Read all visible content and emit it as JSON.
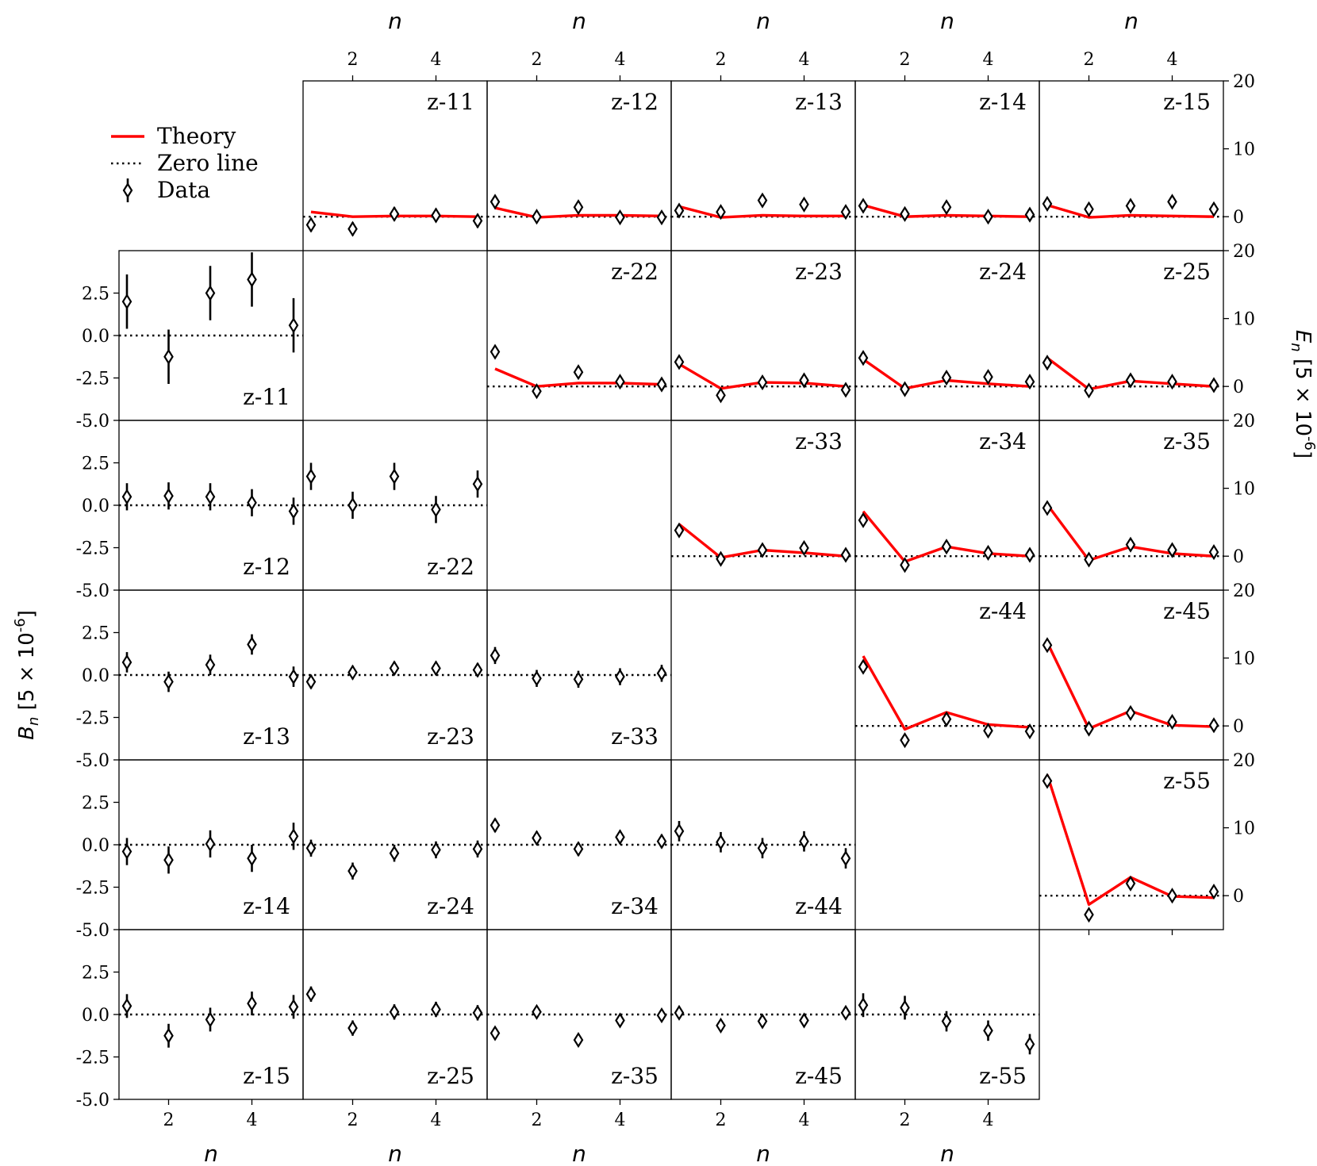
{
  "chart_data": {
    "type": "scatter",
    "x_label": "n",
    "x_ticks": [
      "2",
      "4"
    ],
    "lower_triangle": {
      "y_label": "B_n [5 × 10^-6]",
      "y_ticks": [
        "2.5",
        "0.0",
        "-2.5",
        "-5.0"
      ],
      "ylim": [
        -5.0,
        5.0
      ],
      "panels": [
        {
          "label": "z-11",
          "values": [
            2.0,
            -1.25,
            2.5,
            3.3,
            0.6
          ],
          "errors": [
            1.6,
            1.6,
            1.6,
            1.6,
            1.6
          ]
        },
        {
          "label": "z-12",
          "values": [
            0.5,
            0.55,
            0.5,
            0.15,
            -0.35
          ],
          "errors": [
            0.8,
            0.8,
            0.8,
            0.8,
            0.8
          ]
        },
        {
          "label": "z-22",
          "values": [
            1.7,
            0.0,
            1.7,
            -0.25,
            1.25
          ],
          "errors": [
            0.8,
            0.8,
            0.8,
            0.8,
            0.8
          ]
        },
        {
          "label": "z-13",
          "values": [
            0.75,
            -0.4,
            0.6,
            1.8,
            -0.1
          ],
          "errors": [
            0.6,
            0.6,
            0.6,
            0.6,
            0.6
          ]
        },
        {
          "label": "z-23",
          "values": [
            -0.4,
            0.15,
            0.4,
            0.4,
            0.3
          ],
          "errors": [
            0.4,
            0.4,
            0.4,
            0.4,
            0.4
          ]
        },
        {
          "label": "z-33",
          "values": [
            1.15,
            -0.2,
            -0.25,
            -0.1,
            0.1
          ],
          "errors": [
            0.5,
            0.5,
            0.5,
            0.5,
            0.5
          ]
        },
        {
          "label": "z-14",
          "values": [
            -0.4,
            -0.9,
            0.05,
            -0.8,
            0.5
          ],
          "errors": [
            0.8,
            0.8,
            0.8,
            0.8,
            0.8
          ]
        },
        {
          "label": "z-24",
          "values": [
            -0.2,
            -1.55,
            -0.5,
            -0.3,
            -0.25
          ],
          "errors": [
            0.5,
            0.5,
            0.5,
            0.5,
            0.5
          ]
        },
        {
          "label": "z-34",
          "values": [
            1.15,
            0.4,
            -0.25,
            0.45,
            0.2
          ],
          "errors": [
            0.4,
            0.4,
            0.4,
            0.4,
            0.4
          ]
        },
        {
          "label": "z-44",
          "values": [
            0.8,
            0.15,
            -0.2,
            0.2,
            -0.8
          ],
          "errors": [
            0.6,
            0.6,
            0.6,
            0.6,
            0.6
          ]
        },
        {
          "label": "z-15",
          "values": [
            0.5,
            -1.25,
            -0.3,
            0.65,
            0.45
          ],
          "errors": [
            0.7,
            0.7,
            0.7,
            0.7,
            0.7
          ]
        },
        {
          "label": "z-25",
          "values": [
            1.2,
            -0.8,
            0.15,
            0.3,
            0.1
          ],
          "errors": [
            0.45,
            0.45,
            0.45,
            0.45,
            0.45
          ]
        },
        {
          "label": "z-35",
          "values": [
            -1.1,
            0.15,
            -1.5,
            -0.35,
            -0.05
          ],
          "errors": [
            0.35,
            0.35,
            0.35,
            0.35,
            0.35
          ]
        },
        {
          "label": "z-45",
          "values": [
            0.1,
            -0.65,
            -0.4,
            -0.35,
            0.1
          ],
          "errors": [
            0.35,
            0.35,
            0.35,
            0.35,
            0.35
          ]
        },
        {
          "label": "z-55",
          "values": [
            0.55,
            0.4,
            -0.4,
            -0.95,
            -1.75
          ],
          "errors": [
            0.7,
            0.7,
            0.6,
            0.6,
            0.6
          ]
        }
      ]
    },
    "upper_triangle": {
      "y_label": "E_n [5 × 10^-6]",
      "y_ticks": [
        "20",
        "10",
        "0"
      ],
      "ylim": [
        -5,
        20
      ],
      "panels": [
        {
          "label": "z-11",
          "theory": [
            0.7,
            0.0,
            0.1,
            0.1,
            0.0
          ],
          "values": [
            -1.2,
            -1.8,
            0.4,
            0.2,
            -0.6
          ],
          "errors": [
            1.0,
            1.0,
            1.0,
            1.0,
            1.0
          ]
        },
        {
          "label": "z-12",
          "theory": [
            1.3,
            -0.1,
            0.2,
            0.2,
            0.1
          ],
          "values": [
            2.2,
            0.0,
            1.4,
            -0.1,
            -0.1
          ],
          "errors": [
            0.6,
            0.6,
            0.6,
            0.6,
            0.6
          ]
        },
        {
          "label": "z-13",
          "theory": [
            1.5,
            -0.1,
            0.2,
            0.1,
            0.1
          ],
          "values": [
            0.9,
            0.7,
            2.4,
            1.8,
            0.7
          ],
          "errors": [
            0.6,
            0.6,
            0.6,
            0.6,
            0.6
          ]
        },
        {
          "label": "z-14",
          "theory": [
            1.7,
            0.0,
            0.2,
            0.1,
            0.0
          ],
          "values": [
            1.6,
            0.4,
            1.4,
            0.0,
            0.3
          ],
          "errors": [
            0.6,
            0.6,
            0.6,
            0.6,
            0.6
          ]
        },
        {
          "label": "z-15",
          "theory": [
            1.7,
            -0.1,
            0.2,
            0.1,
            0.0
          ],
          "values": [
            1.9,
            1.1,
            1.6,
            2.2,
            1.1
          ],
          "errors": [
            0.6,
            0.6,
            0.6,
            0.6,
            0.6
          ]
        },
        {
          "label": "z-22",
          "theory": [
            2.6,
            0.0,
            0.5,
            0.5,
            0.3
          ],
          "values": [
            5.1,
            -0.7,
            2.1,
            0.7,
            0.3
          ],
          "errors": [
            0.6,
            0.6,
            0.6,
            0.6,
            0.6
          ]
        },
        {
          "label": "z-23",
          "theory": [
            3.3,
            -0.3,
            0.6,
            0.5,
            0.0
          ],
          "values": [
            3.6,
            -1.3,
            0.6,
            0.9,
            -0.5
          ],
          "errors": [
            0.6,
            0.6,
            0.6,
            0.6,
            0.6
          ]
        },
        {
          "label": "z-24",
          "theory": [
            4.0,
            -0.3,
            0.9,
            0.4,
            0.0
          ],
          "values": [
            4.2,
            -0.4,
            1.3,
            1.4,
            0.7
          ],
          "errors": [
            0.6,
            0.6,
            0.6,
            0.6,
            0.6
          ]
        },
        {
          "label": "z-25",
          "theory": [
            4.2,
            -0.4,
            0.8,
            0.4,
            0.0
          ],
          "values": [
            3.5,
            -0.6,
            0.9,
            0.7,
            0.2
          ],
          "errors": [
            0.6,
            0.6,
            0.6,
            0.6,
            0.6
          ]
        },
        {
          "label": "z-33",
          "theory": [
            4.7,
            -0.2,
            0.9,
            0.5,
            0.0
          ],
          "values": [
            3.8,
            -0.4,
            0.9,
            1.2,
            0.2
          ],
          "errors": [
            0.6,
            0.6,
            0.6,
            0.6,
            0.6
          ]
        },
        {
          "label": "z-34",
          "theory": [
            6.6,
            -0.8,
            1.4,
            0.4,
            0.0
          ],
          "values": [
            5.3,
            -1.3,
            1.4,
            0.5,
            0.2
          ],
          "errors": [
            0.6,
            0.6,
            0.6,
            0.6,
            0.6
          ]
        },
        {
          "label": "z-35",
          "theory": [
            7.6,
            -0.6,
            1.4,
            0.4,
            0.0
          ],
          "values": [
            7.1,
            -0.5,
            1.7,
            0.9,
            0.6
          ],
          "errors": [
            0.6,
            0.6,
            0.6,
            0.6,
            0.6
          ]
        },
        {
          "label": "z-44",
          "theory": [
            10.3,
            -0.5,
            2.0,
            0.2,
            -0.2
          ],
          "values": [
            8.7,
            -2.1,
            1.0,
            -0.7,
            -0.8
          ],
          "errors": [
            0.7,
            0.7,
            0.7,
            0.7,
            0.7
          ]
        },
        {
          "label": "z-45",
          "theory": [
            12.3,
            -0.4,
            2.2,
            0.1,
            -0.1
          ],
          "values": [
            11.9,
            -0.4,
            1.9,
            0.6,
            0.1
          ],
          "errors": [
            0.7,
            0.7,
            0.7,
            0.7,
            0.7
          ]
        },
        {
          "label": "z-55",
          "theory": [
            17.8,
            -1.3,
            2.7,
            -0.1,
            -0.3
          ],
          "values": [
            16.9,
            -2.8,
            1.8,
            0.0,
            0.6
          ],
          "errors": [
            0.8,
            0.8,
            0.8,
            0.8,
            0.8
          ]
        }
      ]
    },
    "legend": {
      "position": "top-left",
      "items": [
        {
          "label": "Theory",
          "style": "line",
          "color": "#ff0000"
        },
        {
          "label": "Zero line",
          "style": "dotted",
          "color": "#000000"
        },
        {
          "label": "Data",
          "style": "errorbar-diamond",
          "color": "#000000"
        }
      ]
    },
    "colors": {
      "theory": "#ff0000",
      "data": "#000000",
      "zero": "#000000"
    }
  }
}
